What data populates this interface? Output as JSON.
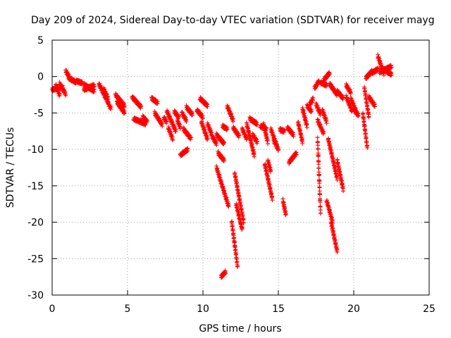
{
  "chart_data": {
    "type": "scatter",
    "title": "Day 209 of 2024, Sidereal Day-to-day VTEC variation (SDTVAR) for receiver mayg",
    "xlabel": "GPS time / hours",
    "ylabel": "SDTVAR / TECUs",
    "xlim": [
      0,
      25
    ],
    "ylim": [
      -30,
      5
    ],
    "xticks": [
      0,
      5,
      10,
      15,
      20,
      25
    ],
    "yticks": [
      -30,
      -25,
      -20,
      -15,
      -10,
      -5,
      0,
      5
    ],
    "x_tick_labels": [
      "0",
      "5",
      "10",
      "15",
      "20",
      "25"
    ],
    "y_tick_labels": [
      "-30",
      "-25",
      "-20",
      "-15",
      "-10",
      "-5",
      "0",
      "5"
    ],
    "grid": true,
    "marker": "+",
    "color": "#ff0000",
    "series": [
      {
        "name": "SDTVAR",
        "segments": [
          [
            0.0,
            0.7,
            -1.8,
            -1.4
          ],
          [
            0.25,
            0.5,
            -1.2,
            -2.6
          ],
          [
            0.5,
            0.9,
            -1.0,
            -2.4
          ],
          [
            0.9,
            1.2,
            0.8,
            -0.3
          ],
          [
            1.1,
            1.6,
            -0.2,
            -0.8
          ],
          [
            1.6,
            2.0,
            -0.6,
            -0.9
          ],
          [
            2.1,
            2.8,
            -1.1,
            -2.0
          ],
          [
            2.1,
            2.8,
            -1.8,
            -1.2
          ],
          [
            3.1,
            3.9,
            -1.0,
            -4.4
          ],
          [
            3.4,
            3.7,
            -1.6,
            -3.0
          ],
          [
            4.2,
            4.8,
            -2.5,
            -4.0
          ],
          [
            4.3,
            4.8,
            -3.5,
            -5.0
          ],
          [
            5.3,
            5.9,
            -2.8,
            -4.2
          ],
          [
            5.4,
            6.2,
            -5.8,
            -6.5
          ],
          [
            6.0,
            6.3,
            -5.5,
            -6.2
          ],
          [
            6.6,
            7.0,
            -3.0,
            -3.6
          ],
          [
            6.8,
            7.3,
            -5.0,
            -6.6
          ],
          [
            7.4,
            7.6,
            -5.6,
            -6.3
          ],
          [
            7.6,
            8.2,
            -4.7,
            -7.5
          ],
          [
            7.7,
            8.0,
            -7.0,
            -8.6
          ],
          [
            8.1,
            8.4,
            -4.8,
            -5.6
          ],
          [
            8.3,
            8.5,
            -6.0,
            -7.0
          ],
          [
            8.6,
            8.9,
            -5.0,
            -6.0
          ],
          [
            8.9,
            9.3,
            -4.2,
            -5.2
          ],
          [
            8.7,
            9.2,
            -7.2,
            -8.5
          ],
          [
            8.5,
            9.0,
            -10.8,
            -10.0
          ],
          [
            9.6,
            10.0,
            -4.6,
            -5.6
          ],
          [
            9.8,
            10.3,
            -3.0,
            -4.0
          ],
          [
            9.9,
            10.3,
            -6.2,
            -8.6
          ],
          [
            10.3,
            10.6,
            -6.5,
            -8.0
          ],
          [
            10.6,
            10.9,
            -8.2,
            -9.2
          ],
          [
            10.9,
            11.4,
            -8.0,
            -9.2
          ],
          [
            11.0,
            11.4,
            -10.5,
            -11.5
          ],
          [
            11.3,
            11.6,
            -6.8,
            -7.2
          ],
          [
            11.6,
            12.0,
            -4.0,
            -6.0
          ],
          [
            10.9,
            11.7,
            -12.5,
            -17.8
          ],
          [
            11.2,
            11.5,
            -27.5,
            -26.8
          ],
          [
            11.9,
            12.3,
            -19.8,
            -26.2
          ],
          [
            12.1,
            12.7,
            -13.2,
            -20.0
          ],
          [
            12.2,
            12.6,
            -17.5,
            -21.0
          ],
          [
            12.0,
            12.4,
            -7.0,
            -8.2
          ],
          [
            12.6,
            12.9,
            -7.2,
            -8.5
          ],
          [
            12.9,
            13.4,
            -6.5,
            -10.8
          ],
          [
            13.1,
            13.6,
            -5.8,
            -6.5
          ],
          [
            13.3,
            13.6,
            -8.0,
            -9.0
          ],
          [
            13.8,
            14.2,
            -6.8,
            -7.2
          ],
          [
            14.0,
            14.3,
            -6.4,
            -9.0
          ],
          [
            14.1,
            14.6,
            -12.0,
            -16.8
          ],
          [
            14.3,
            14.5,
            -11.5,
            -13.0
          ],
          [
            14.5,
            14.9,
            -7.2,
            -9.5
          ],
          [
            14.7,
            15.0,
            -8.8,
            -10.0
          ],
          [
            15.1,
            15.4,
            -7.3,
            -7.5
          ],
          [
            15.3,
            15.5,
            -17.0,
            -19.0
          ],
          [
            15.6,
            16.0,
            -7.0,
            -8.0
          ],
          [
            15.7,
            16.2,
            -11.8,
            -10.5
          ],
          [
            16.3,
            16.6,
            -6.2,
            -9.0
          ],
          [
            16.6,
            16.9,
            -4.4,
            -6.8
          ],
          [
            16.9,
            17.2,
            -4.0,
            -4.8
          ],
          [
            17.0,
            17.3,
            -4.2,
            -3.0
          ],
          [
            17.4,
            17.7,
            -1.6,
            -0.6
          ],
          [
            17.5,
            17.8,
            -3.8,
            -5.2
          ],
          [
            17.6,
            18.0,
            -6.0,
            -7.8
          ],
          [
            17.6,
            17.8,
            -8.5,
            -18.8
          ],
          [
            17.9,
            18.2,
            -4.5,
            -6.2
          ],
          [
            17.8,
            18.2,
            -0.8,
            -1.2
          ],
          [
            18.0,
            18.4,
            -0.5,
            0.5
          ],
          [
            18.2,
            18.6,
            -17.0,
            -20.0
          ],
          [
            18.3,
            18.9,
            -8.5,
            -14.0
          ],
          [
            18.5,
            18.9,
            -20.0,
            -24.0
          ],
          [
            18.4,
            18.9,
            -1.0,
            -2.5
          ],
          [
            18.9,
            19.3,
            -11.5,
            -15.5
          ],
          [
            18.9,
            19.3,
            -2.0,
            -3.0
          ],
          [
            19.5,
            19.8,
            -1.2,
            -2.2
          ],
          [
            19.5,
            19.9,
            -2.8,
            -4.8
          ],
          [
            19.8,
            20.2,
            -3.0,
            -5.0
          ],
          [
            20.0,
            20.3,
            -4.5,
            -5.3
          ],
          [
            20.6,
            20.9,
            -5.0,
            -9.8
          ],
          [
            20.7,
            21.0,
            -1.5,
            -5.5
          ],
          [
            20.8,
            21.2,
            -0.2,
            0.7
          ],
          [
            21.0,
            21.4,
            -2.8,
            -4.0
          ],
          [
            21.2,
            21.6,
            0.5,
            1.0
          ],
          [
            21.6,
            22.0,
            2.8,
            0.4
          ],
          [
            21.8,
            22.5,
            1.2,
            0.3
          ],
          [
            21.7,
            22.5,
            0.6,
            1.4
          ]
        ]
      }
    ]
  }
}
